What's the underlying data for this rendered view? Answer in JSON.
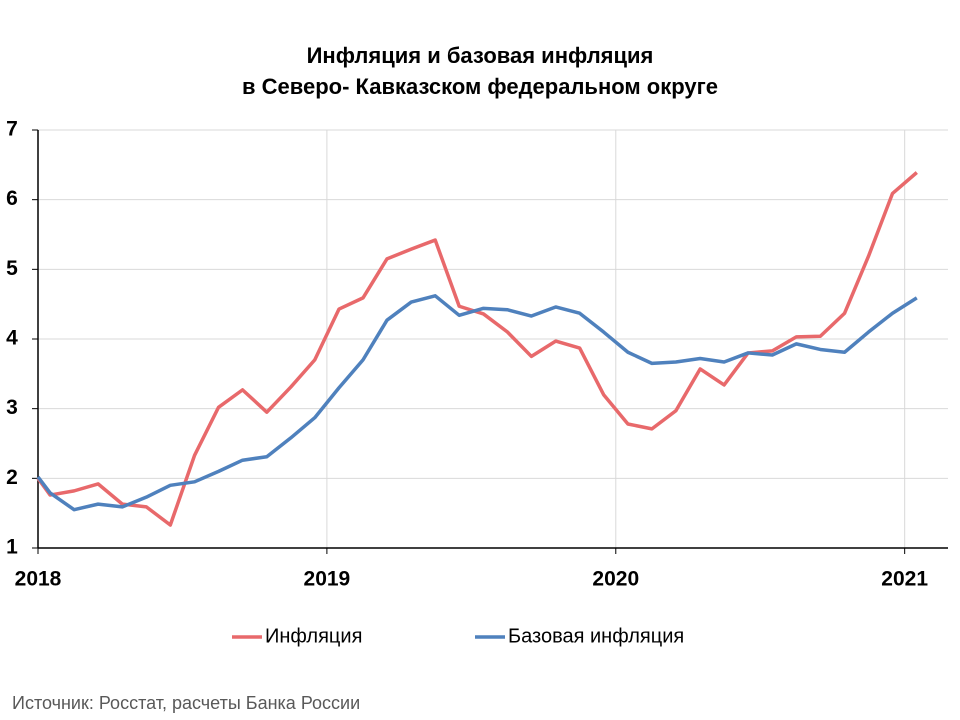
{
  "chart_data": {
    "type": "line",
    "title": [
      "Инфляция и базовая инфляция",
      "в Северо- Кавказском федеральном округе"
    ],
    "x": [
      2018,
      2018.042,
      2018.125,
      2018.208,
      2018.292,
      2018.375,
      2018.458,
      2018.542,
      2018.625,
      2018.708,
      2018.792,
      2018.875,
      2018.958,
      2019.042,
      2019.125,
      2019.208,
      2019.292,
      2019.375,
      2019.458,
      2019.542,
      2019.625,
      2019.708,
      2019.792,
      2019.875,
      2019.958,
      2020.042,
      2020.125,
      2020.208,
      2020.292,
      2020.375,
      2020.458,
      2020.542,
      2020.625,
      2020.708,
      2020.792,
      2020.875,
      2020.958,
      2021.042
    ],
    "series": [
      {
        "name": "Инфляция",
        "color": "#e8696b",
        "values": [
          2.0,
          1.76,
          1.82,
          1.92,
          1.63,
          1.59,
          1.33,
          2.33,
          3.02,
          3.27,
          2.95,
          3.31,
          3.7,
          4.43,
          4.59,
          5.15,
          5.29,
          5.42,
          4.47,
          4.36,
          4.1,
          3.75,
          3.97,
          3.87,
          3.2,
          2.78,
          2.71,
          2.97,
          3.57,
          3.34,
          3.8,
          3.83,
          4.03,
          4.04,
          4.37,
          5.19,
          6.09,
          6.39
        ]
      },
      {
        "name": "Базовая инфляция",
        "color": "#4f81bd",
        "values": [
          2.02,
          1.79,
          1.55,
          1.63,
          1.59,
          1.73,
          1.9,
          1.95,
          2.1,
          2.26,
          2.31,
          2.58,
          2.87,
          3.3,
          3.7,
          4.27,
          4.53,
          4.62,
          4.34,
          4.44,
          4.42,
          4.33,
          4.46,
          4.37,
          4.1,
          3.81,
          3.65,
          3.67,
          3.72,
          3.67,
          3.8,
          3.77,
          3.93,
          3.85,
          3.81,
          4.1,
          4.37,
          4.59
        ]
      }
    ],
    "xlim": [
      2018,
      2021.15
    ],
    "xticks": [
      2018,
      2019,
      2020,
      2021
    ],
    "ylim": [
      1,
      7
    ],
    "yticks": [
      1,
      2,
      3,
      4,
      5,
      6,
      7
    ],
    "grid": true,
    "legend": "bottom",
    "source": "Источник: Росстат, расчеты Банка России"
  }
}
